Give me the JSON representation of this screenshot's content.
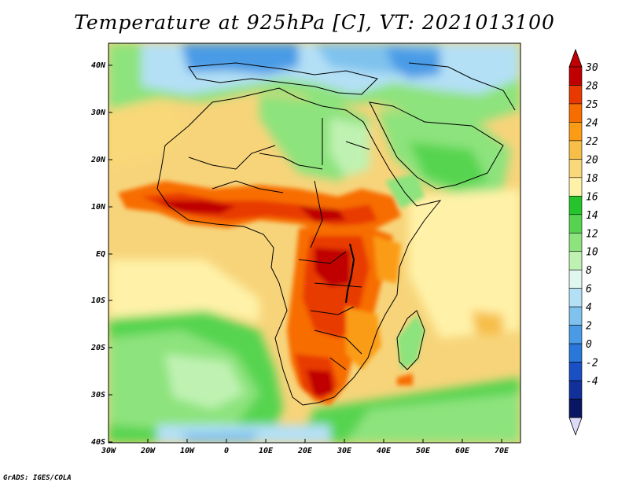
{
  "title": "Temperature at 925hPa [C], VT: 2021013100",
  "credit": "GrADS: IGES/COLA",
  "lat_ticks": [
    "40N",
    "30N",
    "20N",
    "10N",
    "EQ",
    "10S",
    "20S",
    "30S",
    "40S"
  ],
  "lon_ticks": [
    "30W",
    "20W",
    "10W",
    "0",
    "10E",
    "20E",
    "30E",
    "40E",
    "50E",
    "60E",
    "70E"
  ],
  "colorbar": {
    "labels": [
      "30",
      "28",
      "25",
      "24",
      "22",
      "20",
      "18",
      "16",
      "14",
      "12",
      "10",
      "8",
      "6",
      "4",
      "2",
      "0",
      "-2",
      "-4"
    ],
    "colors": [
      "#c00000",
      "#e83a00",
      "#f76d00",
      "#fb9c14",
      "#f7be48",
      "#f8d878",
      "#fff2a8",
      "#26c42c",
      "#56d44f",
      "#8de37d",
      "#bff2b2",
      "#dff7f0",
      "#b4e0f6",
      "#7fc2ee",
      "#4a9be6",
      "#2a77da",
      "#1a50c4",
      "#12309a",
      "#0a1662"
    ],
    "over_color": "#c00000",
    "under_color": "#dcdcf8"
  }
}
